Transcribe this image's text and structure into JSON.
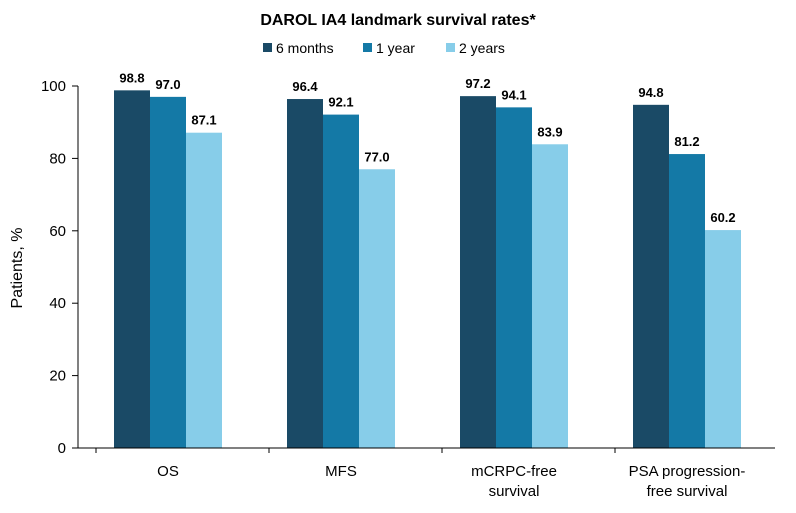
{
  "chart_data": {
    "type": "bar",
    "title": "DAROL IA4 landmark survival rates*",
    "ylabel": "Patients, %",
    "xlabel": "",
    "ylim": [
      0,
      100
    ],
    "yticks": [
      0,
      20,
      40,
      60,
      80,
      100
    ],
    "categories": [
      [
        "OS"
      ],
      [
        "MFS"
      ],
      [
        "mCRPC-free",
        "survival"
      ],
      [
        "PSA progression-",
        "free survival"
      ]
    ],
    "series": [
      {
        "name": "6 months",
        "color": "#1a4a66",
        "values": [
          98.8,
          96.4,
          97.2,
          94.8
        ],
        "labels": [
          "98.8",
          "96.4",
          "97.2",
          "94.8"
        ]
      },
      {
        "name": "1 year",
        "color": "#1479a6",
        "values": [
          97.0,
          92.1,
          94.1,
          81.2
        ],
        "labels": [
          "97.0",
          "92.1",
          "94.1",
          "81.2"
        ]
      },
      {
        "name": "2 years",
        "color": "#87cde9",
        "values": [
          87.1,
          77.0,
          83.9,
          60.2
        ],
        "labels": [
          "87.1",
          "77.0",
          "83.9",
          "60.2"
        ]
      }
    ],
    "legend": "top-center",
    "grid": false
  }
}
